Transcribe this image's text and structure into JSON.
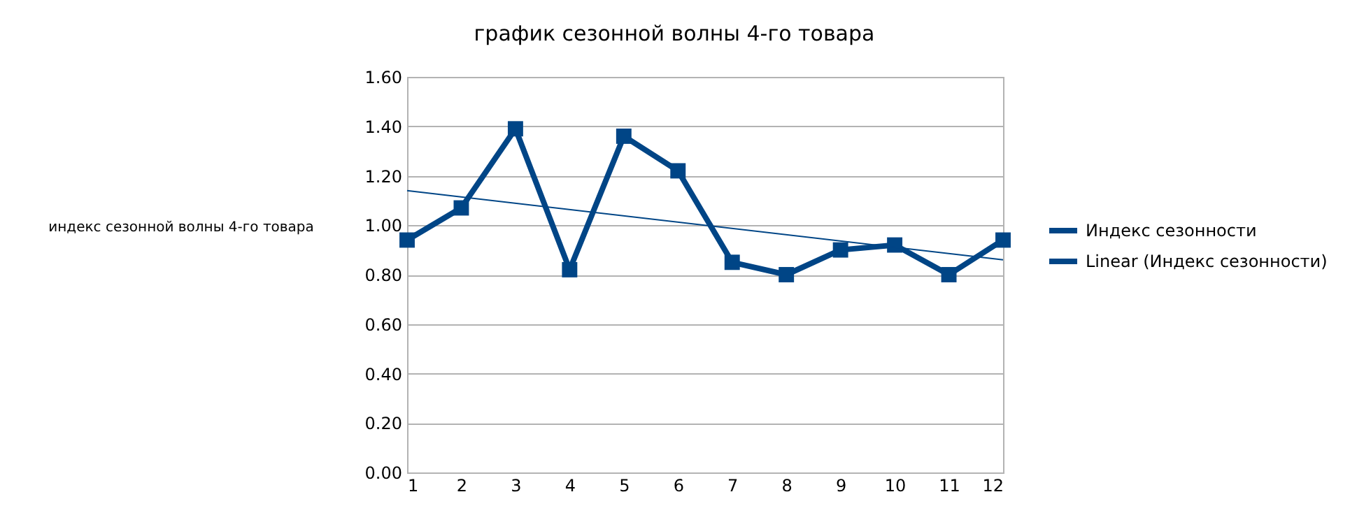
{
  "chart_data": {
    "type": "line",
    "title": "график сезонной волны 4-го товара",
    "ylabel": "индекс сезонной волны 4-го товара",
    "x": [
      1,
      2,
      3,
      4,
      5,
      6,
      7,
      8,
      9,
      10,
      11,
      12
    ],
    "series": [
      {
        "name": "Индекс сезонности",
        "color": "#004586",
        "marker": "square",
        "values": [
          0.94,
          1.07,
          1.39,
          0.82,
          1.36,
          1.22,
          0.85,
          0.8,
          0.9,
          0.92,
          0.8,
          0.94
        ]
      },
      {
        "name": "Linear (Индекс сезонности)",
        "type": "line",
        "color": "#004586",
        "marker": "none",
        "x": [
          1,
          12
        ],
        "values": [
          1.14,
          0.86
        ]
      }
    ],
    "xlim": [
      1,
      12
    ],
    "xticks": [
      1,
      2,
      3,
      4,
      5,
      6,
      7,
      8,
      9,
      10,
      11,
      12
    ],
    "ylim": [
      0,
      1.6
    ],
    "yticks": [
      {
        "value": 0,
        "label": "0.00"
      },
      {
        "value": 0.2,
        "label": "0.20"
      },
      {
        "value": 0.4,
        "label": "0.40"
      },
      {
        "value": 0.6,
        "label": "0.60"
      },
      {
        "value": 0.8,
        "label": "0.80"
      },
      {
        "value": 1,
        "label": "1.00"
      },
      {
        "value": 1.2,
        "label": "1.20"
      },
      {
        "value": 1.4,
        "label": "1.40"
      },
      {
        "value": 1.6,
        "label": "1.60"
      }
    ],
    "grid": "y",
    "legend": "right",
    "line_style": "solid"
  }
}
